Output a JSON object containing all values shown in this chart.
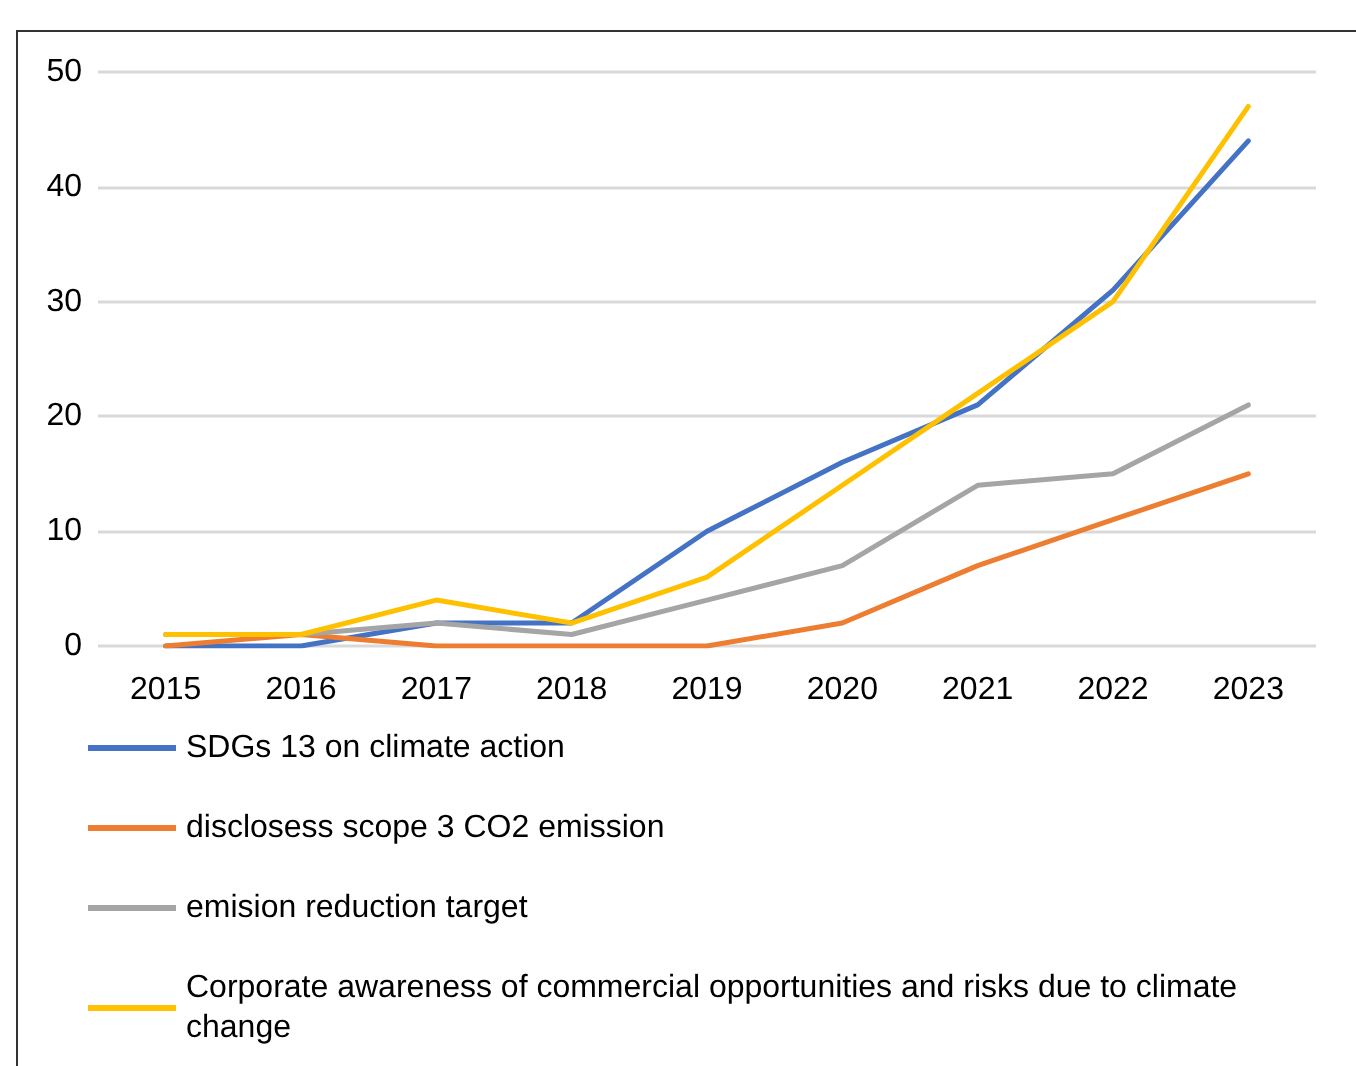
{
  "chart_data": {
    "type": "line",
    "categories": [
      "2015",
      "2016",
      "2017",
      "2018",
      "2019",
      "2020",
      "2021",
      "2022",
      "2023"
    ],
    "series": [
      {
        "name": "SDGs 13 on climate action",
        "color": "#4472c4",
        "values": [
          0,
          0,
          2,
          2,
          10,
          16,
          21,
          31,
          44
        ]
      },
      {
        "name": "disclosess scope 3 CO2 emission",
        "color": "#ed7d31",
        "values": [
          0,
          1,
          0,
          0,
          0,
          2,
          7,
          11,
          15
        ]
      },
      {
        "name": "emision reduction target",
        "color": "#a5a5a5",
        "values": [
          1,
          1,
          2,
          1,
          4,
          7,
          14,
          15,
          21
        ]
      },
      {
        "name": "Corporate awareness of commercial opportunities and risks due to climate change",
        "color": "#ffc000",
        "values": [
          1,
          1,
          4,
          2,
          6,
          14,
          22,
          30,
          47
        ]
      }
    ],
    "ylim": [
      0,
      50
    ],
    "yticks": [
      0,
      10,
      20,
      30,
      40,
      50
    ],
    "grid": "y",
    "legend": "bottom",
    "marker": "none",
    "line_style": "solid"
  }
}
